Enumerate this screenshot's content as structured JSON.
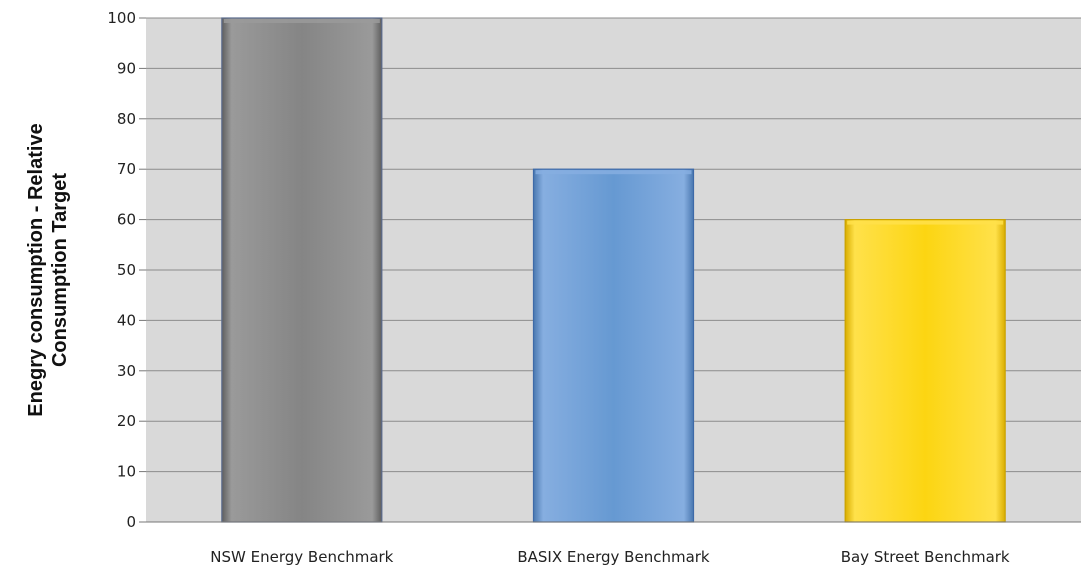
{
  "chart_data": {
    "type": "bar",
    "title": "",
    "xlabel": "",
    "ylabel_lines": [
      "Enegry consumption  - Relative",
      "Consumption Target"
    ],
    "categories": [
      "NSW Energy Benchmark",
      "BASIX Energy Benchmark",
      "Bay Street Benchmark"
    ],
    "values": [
      100,
      70,
      60
    ],
    "ylim": [
      0,
      100
    ],
    "yticks": [
      0,
      10,
      20,
      30,
      40,
      50,
      60,
      70,
      80,
      90,
      100
    ],
    "grid": true,
    "legend": "none",
    "plot_background": "#d9d9d9",
    "bar_colors": [
      {
        "light": "#9a9a9a",
        "mid": "#858585",
        "dark": "#5e5e5e",
        "edge": "#5a6b8c"
      },
      {
        "light": "#86aee0",
        "mid": "#6699d2",
        "dark": "#4a78b0",
        "edge": "#3e6aa8"
      },
      {
        "light": "#ffe14a",
        "mid": "#fcd512",
        "dark": "#d9ad00",
        "edge": "#caa200"
      }
    ]
  }
}
